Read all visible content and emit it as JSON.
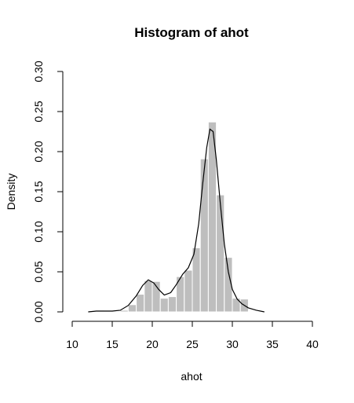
{
  "chart_data": {
    "type": "bar",
    "title": "Histogram of ahot",
    "xlabel": "ahot",
    "ylabel": "Density",
    "xlim": [
      10,
      40
    ],
    "ylim": [
      0,
      0.3
    ],
    "x_ticks": [
      "10",
      "15",
      "20",
      "25",
      "30",
      "35",
      "40"
    ],
    "y_ticks": [
      "0.00",
      "0.05",
      "0.10",
      "0.15",
      "0.20",
      "0.25",
      "0.30"
    ],
    "grid": false,
    "bin_width": 1,
    "bins": [
      {
        "start": 12,
        "end": 13,
        "value": 0.001
      },
      {
        "start": 13,
        "end": 14,
        "value": 0.002
      },
      {
        "start": 14,
        "end": 15,
        "value": 0.001
      },
      {
        "start": 15,
        "end": 16,
        "value": 0.001
      },
      {
        "start": 16,
        "end": 17,
        "value": 0.002
      },
      {
        "start": 17,
        "end": 18,
        "value": 0.009
      },
      {
        "start": 18,
        "end": 19,
        "value": 0.022
      },
      {
        "start": 19,
        "end": 20,
        "value": 0.039
      },
      {
        "start": 20,
        "end": 21,
        "value": 0.038
      },
      {
        "start": 21,
        "end": 22,
        "value": 0.017
      },
      {
        "start": 22,
        "end": 23,
        "value": 0.019
      },
      {
        "start": 23,
        "end": 24,
        "value": 0.044
      },
      {
        "start": 24,
        "end": 25,
        "value": 0.052
      },
      {
        "start": 25,
        "end": 26,
        "value": 0.08
      },
      {
        "start": 26,
        "end": 27,
        "value": 0.191
      },
      {
        "start": 27,
        "end": 28,
        "value": 0.237
      },
      {
        "start": 28,
        "end": 29,
        "value": 0.146
      },
      {
        "start": 29,
        "end": 30,
        "value": 0.068
      },
      {
        "start": 30,
        "end": 31,
        "value": 0.017
      },
      {
        "start": 31,
        "end": 32,
        "value": 0.016
      }
    ],
    "density_curve": {
      "x": [
        12.0,
        13.0,
        14.0,
        15.0,
        16.0,
        17.0,
        18.0,
        18.8,
        19.5,
        20.2,
        20.8,
        21.5,
        22.3,
        23.0,
        23.8,
        24.5,
        25.2,
        25.8,
        26.3,
        26.8,
        27.2,
        27.6,
        28.0,
        28.5,
        29.0,
        29.5,
        30.0,
        30.6,
        31.2,
        32.0,
        33.0,
        34.0
      ],
      "y": [
        0.0,
        0.001,
        0.001,
        0.001,
        0.002,
        0.008,
        0.02,
        0.033,
        0.04,
        0.036,
        0.028,
        0.021,
        0.024,
        0.034,
        0.047,
        0.055,
        0.072,
        0.11,
        0.16,
        0.205,
        0.228,
        0.225,
        0.19,
        0.135,
        0.085,
        0.05,
        0.028,
        0.016,
        0.01,
        0.005,
        0.002,
        0.0
      ]
    },
    "colors": {
      "bars": "#bebebe",
      "bar_border": "#ffffff",
      "curve": "#000000",
      "axes": "#000000"
    }
  }
}
